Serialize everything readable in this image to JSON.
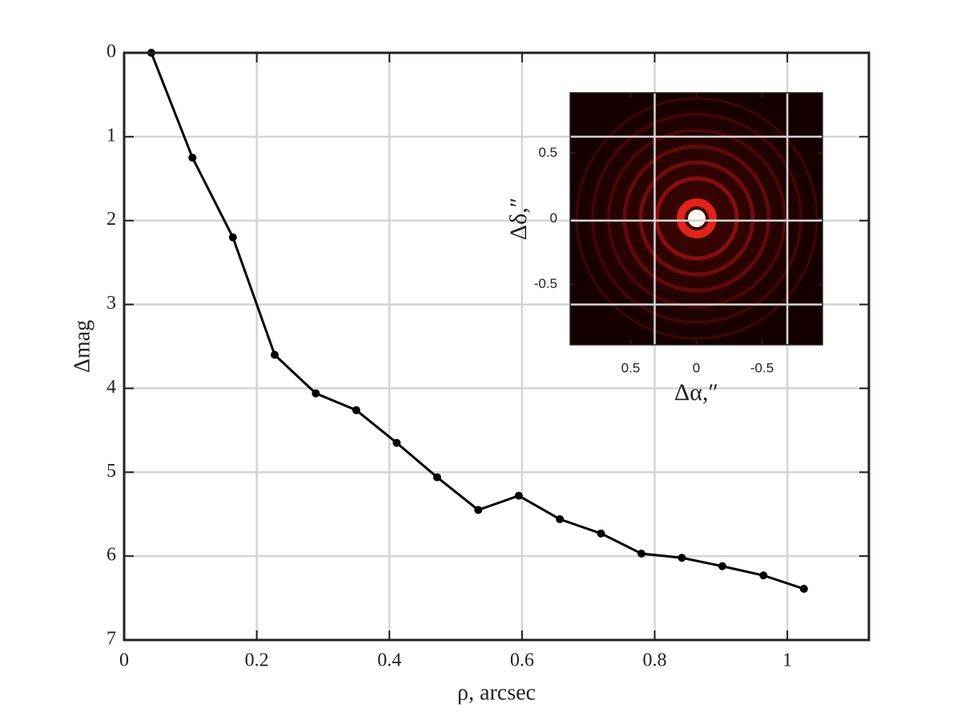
{
  "chart_data": [
    {
      "type": "line",
      "xlabel": "ρ, arcsec",
      "ylabel": "Δmag",
      "x": [
        0.041,
        0.103,
        0.164,
        0.227,
        0.289,
        0.35,
        0.411,
        0.472,
        0.534,
        0.595,
        0.657,
        0.719,
        0.78,
        0.841,
        0.902,
        0.964,
        1.025
      ],
      "values": [
        0,
        1.25,
        2.2,
        3.6,
        4.06,
        4.26,
        4.65,
        5.06,
        5.45,
        5.28,
        5.56,
        5.73,
        5.97,
        6.02,
        6.12,
        6.23,
        6.39
      ],
      "color": "#000000",
      "xlim": [
        0,
        1.123
      ],
      "xticks": [
        0,
        0.2,
        0.4,
        0.6,
        0.8,
        1
      ],
      "ylim": [
        7,
        0
      ],
      "yticks": [
        0,
        1,
        2,
        3,
        4,
        5,
        6,
        7
      ],
      "grid": true
    },
    {
      "type": "image",
      "xlabel": "Δα,″",
      "ylabel": "Δδ,″",
      "xlim": [
        0.96,
        -0.96
      ],
      "xticks": [
        0.5,
        0,
        -0.5
      ],
      "ylim": [
        -0.96,
        0.96
      ],
      "yticks": [
        0.5,
        0,
        -0.5
      ]
    }
  ]
}
